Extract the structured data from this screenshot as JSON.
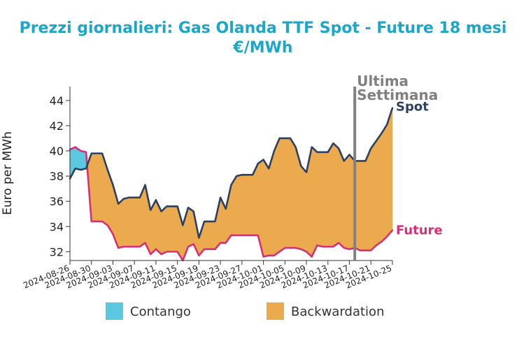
{
  "chart_data": {
    "type": "area",
    "title": "Prezzi giornalieri: Gas Olanda TTF Spot - Future 18 mesi",
    "subtitle": "€/MWh",
    "ylabel": "Euro per MWh",
    "ylim": [
      31.3,
      45.1
    ],
    "yticks": [
      32,
      34,
      36,
      38,
      40,
      42,
      44
    ],
    "xticks": [
      "2024-08-26",
      "2024-08-30",
      "2024-09-03",
      "2024-09-07",
      "2024-09-11",
      "2024-09-15",
      "2024-09-19",
      "2024-09-23",
      "2024-09-27",
      "2024-10-01",
      "2024-10-05",
      "2024-10-09",
      "2024-10-13",
      "2024-10-17",
      "2024-10-21",
      "2024-10-25"
    ],
    "x_start": "2024-08-26",
    "x_end": "2024-10-25",
    "series": [
      {
        "name": "Spot",
        "color": "#2d4060",
        "points": [
          [
            "2024-08-26",
            37.8
          ],
          [
            "2024-08-27",
            38.6
          ],
          [
            "2024-08-28",
            38.5
          ],
          [
            "2024-08-29",
            38.6
          ],
          [
            "2024-08-30",
            39.8
          ],
          [
            "2024-08-31",
            39.8
          ],
          [
            "2024-09-01",
            39.8
          ],
          [
            "2024-09-02",
            38.5
          ],
          [
            "2024-09-03",
            37.3
          ],
          [
            "2024-09-04",
            35.8
          ],
          [
            "2024-09-05",
            36.2
          ],
          [
            "2024-09-06",
            36.3
          ],
          [
            "2024-09-07",
            36.3
          ],
          [
            "2024-09-08",
            36.3
          ],
          [
            "2024-09-09",
            37.3
          ],
          [
            "2024-09-10",
            35.3
          ],
          [
            "2024-09-11",
            36.1
          ],
          [
            "2024-09-12",
            35.2
          ],
          [
            "2024-09-13",
            35.6
          ],
          [
            "2024-09-14",
            35.6
          ],
          [
            "2024-09-15",
            35.6
          ],
          [
            "2024-09-16",
            34.1
          ],
          [
            "2024-09-17",
            35.5
          ],
          [
            "2024-09-18",
            35.2
          ],
          [
            "2024-09-19",
            33.1
          ],
          [
            "2024-09-20",
            34.4
          ],
          [
            "2024-09-21",
            34.4
          ],
          [
            "2024-09-22",
            34.4
          ],
          [
            "2024-09-23",
            36.3
          ],
          [
            "2024-09-24",
            35.4
          ],
          [
            "2024-09-25",
            37.3
          ],
          [
            "2024-09-26",
            38.0
          ],
          [
            "2024-09-27",
            38.1
          ],
          [
            "2024-09-28",
            38.1
          ],
          [
            "2024-09-29",
            38.1
          ],
          [
            "2024-09-30",
            39.0
          ],
          [
            "2024-10-01",
            39.3
          ],
          [
            "2024-10-02",
            38.6
          ],
          [
            "2024-10-03",
            40.0
          ],
          [
            "2024-10-04",
            41.0
          ],
          [
            "2024-10-05",
            41.0
          ],
          [
            "2024-10-06",
            41.0
          ],
          [
            "2024-10-07",
            40.3
          ],
          [
            "2024-10-08",
            38.8
          ],
          [
            "2024-10-09",
            38.3
          ],
          [
            "2024-10-10",
            40.3
          ],
          [
            "2024-10-11",
            39.9
          ],
          [
            "2024-10-12",
            39.9
          ],
          [
            "2024-10-13",
            39.9
          ],
          [
            "2024-10-14",
            40.6
          ],
          [
            "2024-10-15",
            40.2
          ],
          [
            "2024-10-16",
            39.2
          ],
          [
            "2024-10-17",
            39.7
          ],
          [
            "2024-10-18",
            39.2
          ],
          [
            "2024-10-19",
            39.2
          ],
          [
            "2024-10-20",
            39.2
          ],
          [
            "2024-10-21",
            40.2
          ],
          [
            "2024-10-22",
            40.8
          ],
          [
            "2024-10-23",
            41.4
          ],
          [
            "2024-10-24",
            42.1
          ],
          [
            "2024-10-25",
            43.4
          ]
        ]
      },
      {
        "name": "Future",
        "color": "#d62f7a",
        "points": [
          [
            "2024-08-26",
            40.1
          ],
          [
            "2024-08-27",
            40.3
          ],
          [
            "2024-08-28",
            40.0
          ],
          [
            "2024-08-29",
            39.9
          ],
          [
            "2024-08-30",
            34.4
          ],
          [
            "2024-08-31",
            34.4
          ],
          [
            "2024-09-01",
            34.4
          ],
          [
            "2024-09-02",
            34.1
          ],
          [
            "2024-09-03",
            33.4
          ],
          [
            "2024-09-04",
            32.3
          ],
          [
            "2024-09-05",
            32.4
          ],
          [
            "2024-09-06",
            32.4
          ],
          [
            "2024-09-07",
            32.4
          ],
          [
            "2024-09-08",
            32.4
          ],
          [
            "2024-09-09",
            32.7
          ],
          [
            "2024-09-10",
            31.8
          ],
          [
            "2024-09-11",
            32.2
          ],
          [
            "2024-09-12",
            31.8
          ],
          [
            "2024-09-13",
            32.0
          ],
          [
            "2024-09-14",
            32.0
          ],
          [
            "2024-09-15",
            32.0
          ],
          [
            "2024-09-16",
            31.3
          ],
          [
            "2024-09-17",
            32.4
          ],
          [
            "2024-09-18",
            32.6
          ],
          [
            "2024-09-19",
            31.7
          ],
          [
            "2024-09-20",
            32.2
          ],
          [
            "2024-09-21",
            32.2
          ],
          [
            "2024-09-22",
            32.2
          ],
          [
            "2024-09-23",
            32.7
          ],
          [
            "2024-09-24",
            32.7
          ],
          [
            "2024-09-25",
            33.3
          ],
          [
            "2024-09-26",
            33.3
          ],
          [
            "2024-09-27",
            33.3
          ],
          [
            "2024-09-28",
            33.3
          ],
          [
            "2024-09-29",
            33.3
          ],
          [
            "2024-09-30",
            33.3
          ],
          [
            "2024-10-01",
            31.6
          ],
          [
            "2024-10-02",
            31.7
          ],
          [
            "2024-10-03",
            31.7
          ],
          [
            "2024-10-04",
            32.0
          ],
          [
            "2024-10-05",
            32.3
          ],
          [
            "2024-10-06",
            32.3
          ],
          [
            "2024-10-07",
            32.3
          ],
          [
            "2024-10-08",
            32.2
          ],
          [
            "2024-10-09",
            32.0
          ],
          [
            "2024-10-10",
            31.6
          ],
          [
            "2024-10-11",
            32.5
          ],
          [
            "2024-10-12",
            32.4
          ],
          [
            "2024-10-13",
            32.4
          ],
          [
            "2024-10-14",
            32.4
          ],
          [
            "2024-10-15",
            32.7
          ],
          [
            "2024-10-16",
            32.3
          ],
          [
            "2024-10-17",
            32.2
          ],
          [
            "2024-10-18",
            32.3
          ],
          [
            "2024-10-19",
            32.1
          ],
          [
            "2024-10-20",
            32.1
          ],
          [
            "2024-10-21",
            32.1
          ],
          [
            "2024-10-22",
            32.5
          ],
          [
            "2024-10-23",
            32.8
          ],
          [
            "2024-10-24",
            33.2
          ],
          [
            "2024-10-25",
            33.7
          ]
        ]
      }
    ],
    "fills": {
      "contango_color": "#5bc8e0",
      "backwardation_color": "#ebaa4d"
    },
    "annotation": {
      "line1": "Ultima",
      "line2": "Settimana",
      "date": "2024-10-18",
      "color": "#808080"
    },
    "legend": {
      "placement": "bottom",
      "items": [
        {
          "label": "Contango",
          "color": "#5bc8e0"
        },
        {
          "label": "Backwardation",
          "color": "#ebaa4d"
        }
      ]
    }
  }
}
